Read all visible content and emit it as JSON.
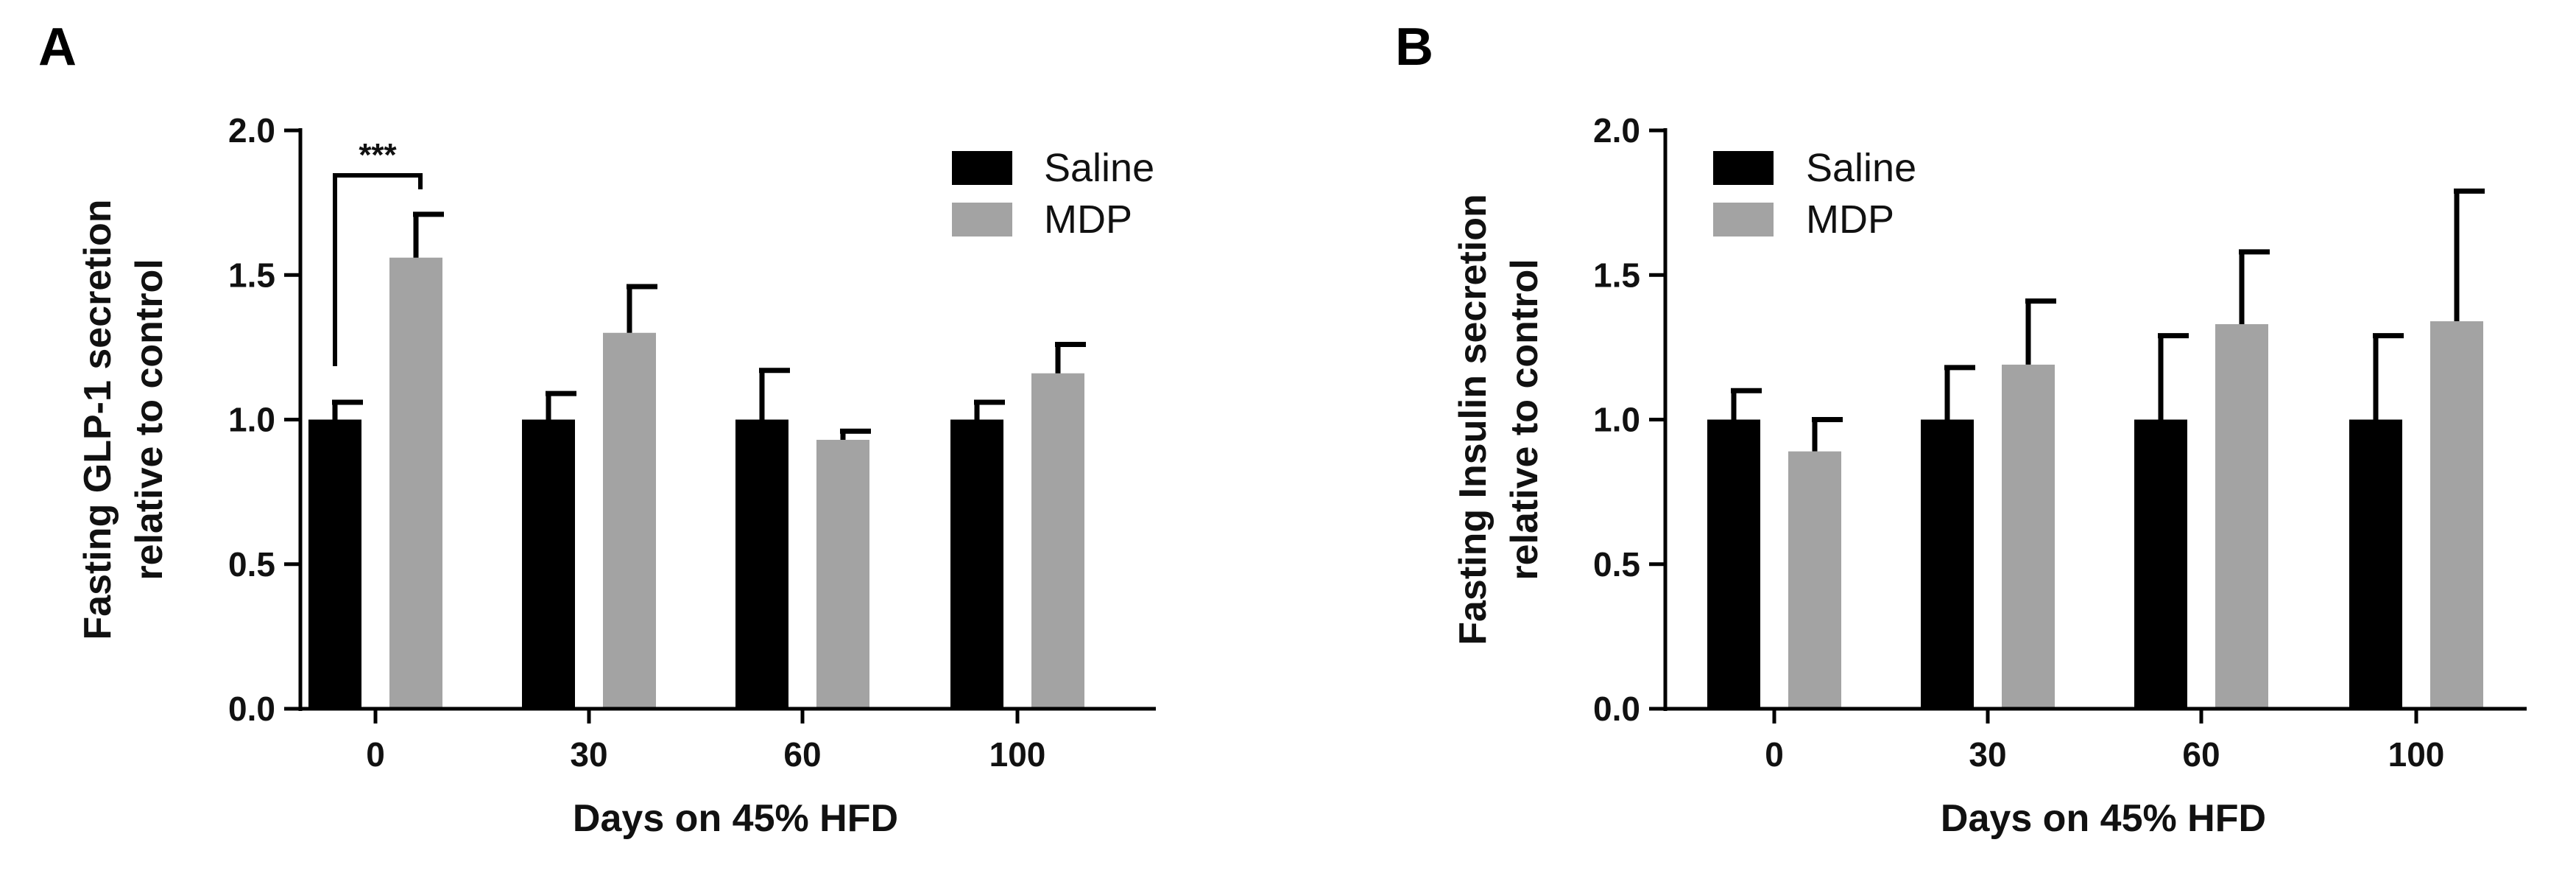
{
  "colors": {
    "saline": "#000000",
    "mdp": "#a3a3a3",
    "axis": "#000000"
  },
  "chart_data": [
    {
      "panel": "A",
      "type": "bar",
      "title": "",
      "xlabel": "Days on 45% HFD",
      "ylabel": [
        "Fasting GLP-1 secretion",
        "relative to control"
      ],
      "categories": [
        "0",
        "30",
        "60",
        "100"
      ],
      "ylim": [
        0,
        2.0
      ],
      "yticks": [
        "0.0",
        "0.5",
        "1.0",
        "1.5",
        "2.0"
      ],
      "grid": false,
      "legend_position": "top-right",
      "series": [
        {
          "name": "Saline",
          "color_key": "saline",
          "values": [
            1.0,
            1.0,
            1.0,
            1.0
          ],
          "errors": [
            0.06,
            0.09,
            0.17,
            0.06
          ]
        },
        {
          "name": "MDP",
          "color_key": "mdp",
          "values": [
            1.56,
            1.3,
            0.93,
            1.16
          ],
          "errors": [
            0.15,
            0.16,
            0.03,
            0.1
          ]
        }
      ],
      "annotations": [
        {
          "text": "***",
          "from": {
            "category": 0,
            "series": 0
          },
          "to": {
            "category": 0,
            "series": 1
          }
        }
      ]
    },
    {
      "panel": "B",
      "type": "bar",
      "title": "",
      "xlabel": "Days on 45% HFD",
      "ylabel": [
        "Fasting Insulin secretion",
        "relative to control"
      ],
      "categories": [
        "0",
        "30",
        "60",
        "100"
      ],
      "ylim": [
        0,
        2.0
      ],
      "yticks": [
        "0.0",
        "0.5",
        "1.0",
        "1.5",
        "2.0"
      ],
      "grid": false,
      "legend_position": "top-left",
      "series": [
        {
          "name": "Saline",
          "color_key": "saline",
          "values": [
            1.0,
            1.0,
            1.0,
            1.0
          ],
          "errors": [
            0.1,
            0.18,
            0.29,
            0.29
          ]
        },
        {
          "name": "MDP",
          "color_key": "mdp",
          "values": [
            0.89,
            1.19,
            1.33,
            1.34
          ],
          "errors": [
            0.11,
            0.22,
            0.25,
            0.45
          ]
        }
      ],
      "annotations": []
    }
  ]
}
